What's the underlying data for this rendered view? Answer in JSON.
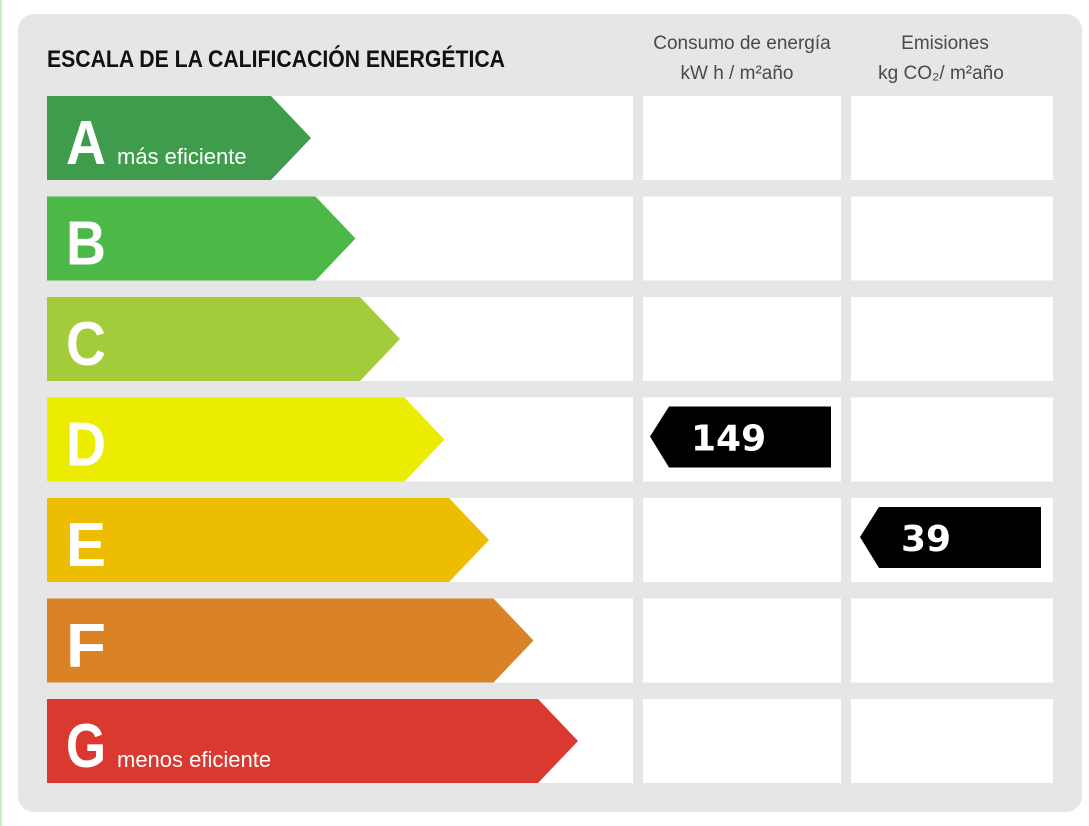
{
  "header": {
    "title": "ESCALA DE LA CALIFICACIÓN ENERGÉTICA",
    "columns": [
      {
        "line1": "Consumo de energía",
        "line2": "kW h / m²año"
      },
      {
        "line1": "Emisiones",
        "line2": "kg CO₂/ m²año"
      }
    ]
  },
  "rows": [
    {
      "letter": "A",
      "label": "más eficiente",
      "color": "#3e9c4c"
    },
    {
      "letter": "B",
      "color": "#4bb848"
    },
    {
      "letter": "C",
      "color": "#a3cb3a"
    },
    {
      "letter": "D",
      "color": "#ecec00",
      "consumo": 149
    },
    {
      "letter": "E",
      "color": "#ecbd00",
      "emisiones": 39
    },
    {
      "letter": "F",
      "color": "#da8226"
    },
    {
      "letter": "G",
      "label": "menos eficiente",
      "color": "#da3930"
    }
  ]
}
